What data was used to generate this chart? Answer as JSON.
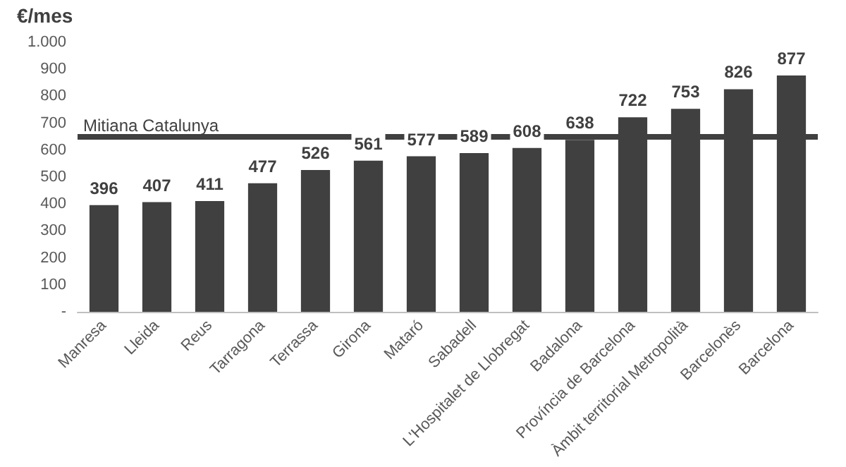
{
  "chart_data": {
    "type": "bar",
    "ylabel": "€/mes",
    "categories": [
      "Manresa",
      "Lleida",
      "Reus",
      "Tarragona",
      "Terrassa",
      "Girona",
      "Mataró",
      "Sabadell",
      "L'Hospitalet de Llobregat",
      "Badalona",
      "Província de Barcelona",
      "Àmbit territorial Metropolità",
      "Barcelonès",
      "Barcelona"
    ],
    "values": [
      396,
      407,
      411,
      477,
      526,
      561,
      577,
      589,
      608,
      638,
      722,
      753,
      826,
      877
    ],
    "color": "#404040",
    "data_labels": true,
    "grid": false,
    "ylim": [
      0,
      1000
    ],
    "yticks": [
      {
        "value": 0,
        "label": "-"
      },
      100,
      200,
      300,
      400,
      500,
      600,
      700,
      800,
      900,
      {
        "value": 1000,
        "label": "1.000"
      }
    ],
    "ref_lines": [
      {
        "axis": "y",
        "value": 650,
        "label": "Mitiana Catalunya",
        "color": "#404040"
      }
    ]
  }
}
